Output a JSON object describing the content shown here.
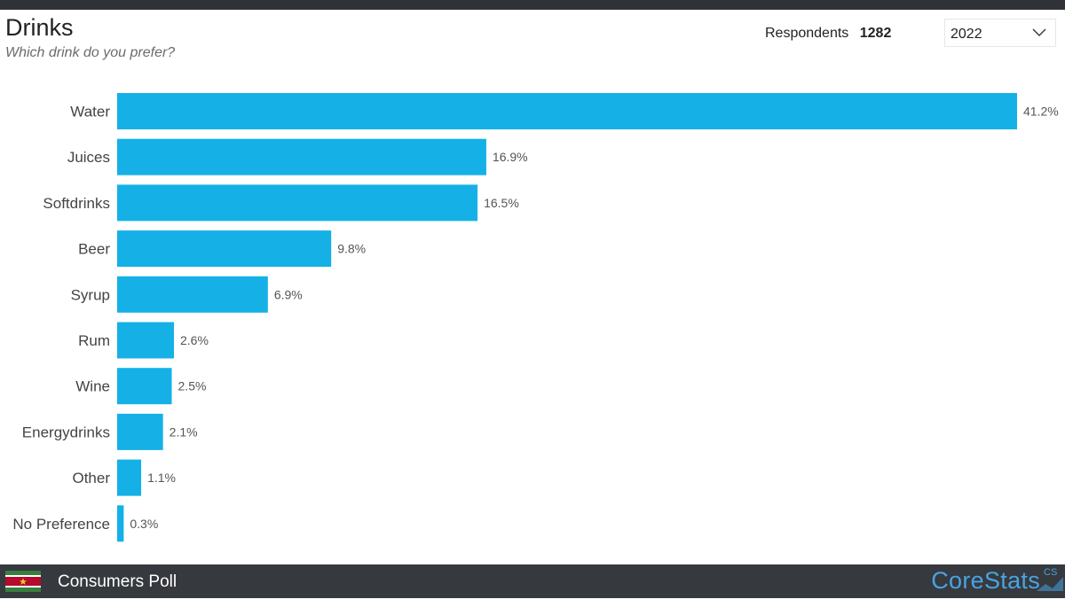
{
  "header": {
    "title": "Drinks",
    "subtitle": "Which drink do you prefer?",
    "respondents_label": "Respondents",
    "respondents_count": "1282",
    "year_selected": "2022"
  },
  "footer": {
    "title": "Consumers Poll",
    "brand": "CoreStats",
    "brand_mark": "CS"
  },
  "colors": {
    "bar": "#15b1e6",
    "footer_bg": "#36393e",
    "brand": "#4aa3e0"
  },
  "icons": {
    "year_dropdown": "chevron-down-icon",
    "flag": "suriname-flag-icon"
  },
  "chart_data": {
    "type": "bar",
    "orientation": "horizontal",
    "categories": [
      "Water",
      "Juices",
      "Softdrinks",
      "Beer",
      "Syrup",
      "Rum",
      "Wine",
      "Energydrinks",
      "Other",
      "No Preference"
    ],
    "values": [
      41.2,
      16.9,
      16.5,
      9.8,
      6.9,
      2.6,
      2.5,
      2.1,
      1.1,
      0.3
    ],
    "value_labels": [
      "41.2%",
      "16.9%",
      "16.5%",
      "9.8%",
      "6.9%",
      "2.6%",
      "2.5%",
      "2.1%",
      "1.1%",
      "0.3%"
    ],
    "unit": "%",
    "title": "Drinks",
    "subtitle": "Which drink do you prefer?",
    "xlim": [
      0,
      41.2
    ],
    "grid": false,
    "legend": "none"
  }
}
